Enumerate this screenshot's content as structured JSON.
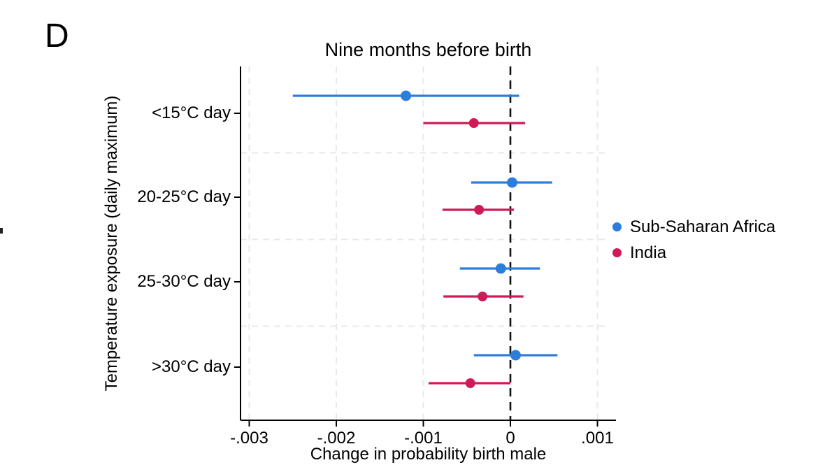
{
  "panel_label": "D",
  "chart_data": {
    "type": "scatter",
    "subtype": "coefficient-plot-with-error-bars",
    "title": "Nine months before birth",
    "xlabel": "Change in probability birth male",
    "ylabel": "Temperature exposure (daily maximum)",
    "categories": [
      "<15°C day",
      "20-25°C day",
      "25-30°C day",
      ">30°C day"
    ],
    "xticks": [
      {
        "value": -0.003,
        "label": "-.003"
      },
      {
        "value": -0.002,
        "label": "-.002"
      },
      {
        "value": -0.001,
        "label": "-.001"
      },
      {
        "value": 0,
        "label": "0"
      },
      {
        "value": 0.001,
        "label": ".001"
      }
    ],
    "xlim": [
      -0.0031,
      0.00122
    ],
    "zero_reference_line": 0,
    "grid": {
      "vertical_at_ticks": "light dashed",
      "horizontal_category_separators": "light dashed",
      "zero_line_style": "black dashed"
    },
    "legend": {
      "position": "right"
    },
    "series": [
      {
        "name": "Sub-Saharan Africa",
        "color": "#2d7ddb",
        "points": [
          {
            "category": "<15°C day",
            "estimate": -0.0012,
            "ci_low": -0.0025,
            "ci_high": 0.0001
          },
          {
            "category": "20-25°C day",
            "estimate": 2e-05,
            "ci_low": -0.00045,
            "ci_high": 0.00048
          },
          {
            "category": "25-30°C day",
            "estimate": -0.00011,
            "ci_low": -0.00058,
            "ci_high": 0.00034
          },
          {
            "category": ">30°C day",
            "estimate": 6e-05,
            "ci_low": -0.00042,
            "ci_high": 0.00054
          }
        ]
      },
      {
        "name": "India",
        "color": "#d01a55",
        "points": [
          {
            "category": "<15°C day",
            "estimate": -0.00042,
            "ci_low": -0.001,
            "ci_high": 0.00017
          },
          {
            "category": "20-25°C day",
            "estimate": -0.00036,
            "ci_low": -0.00078,
            "ci_high": 4e-05
          },
          {
            "category": "25-30°C day",
            "estimate": -0.00032,
            "ci_low": -0.00077,
            "ci_high": 0.00015
          },
          {
            "category": ">30°C day",
            "estimate": -0.00046,
            "ci_low": -0.00094,
            "ci_high": 0.0
          }
        ]
      }
    ],
    "colors": {
      "axis": "#000000",
      "grid": "#e9e9e9",
      "zero_line": "#111111",
      "text": "#000000"
    }
  }
}
